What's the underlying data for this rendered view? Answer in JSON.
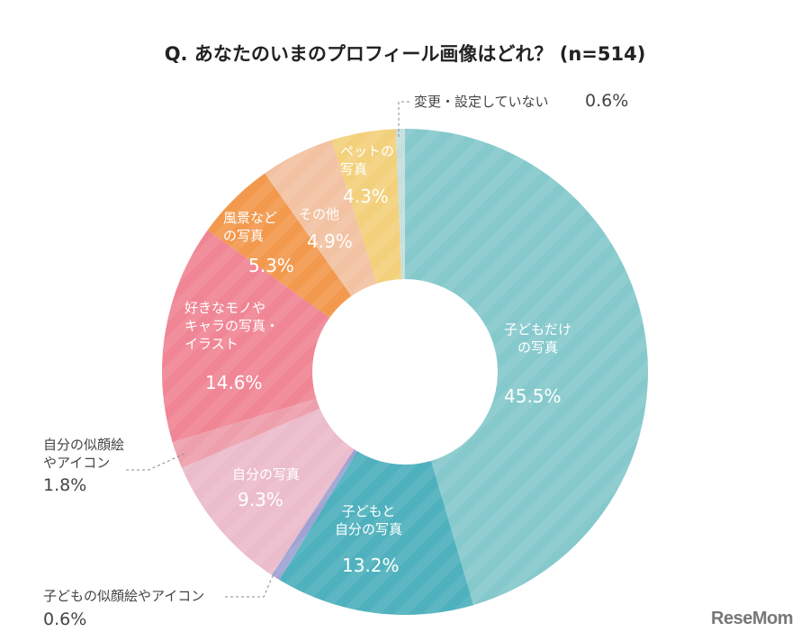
{
  "title": "Q. あなたのいまのプロフィール画像はどれ？ (n=514)",
  "logo": "ReseMom",
  "chart_data": {
    "type": "pie",
    "donut": true,
    "start": "12 o'clock, clockwise",
    "title": "Q. あなたのいまのプロフィール画像はどれ？ (n=514)",
    "slices": [
      {
        "label": "子どもだけ\nの写真",
        "value": 45.5,
        "value_label": "45.5%",
        "color": "#86c9cc"
      },
      {
        "label": "子どもと\n自分の写真",
        "value": 13.2,
        "value_label": "13.2%",
        "color": "#4fb1bd"
      },
      {
        "label": "子どもの似顔絵やアイコン",
        "value": 0.6,
        "value_label": "0.6%",
        "color": "#9ea3d3"
      },
      {
        "label": "自分の写真",
        "value": 9.3,
        "value_label": "9.3%",
        "color": "#ebbccb"
      },
      {
        "label": "自分の似顔絵\nやアイコン",
        "value": 1.8,
        "value_label": "1.8%",
        "color": "#eda0ac"
      },
      {
        "label": "好きなモノや\nキャラの写真・\nイラスト",
        "value": 14.6,
        "value_label": "14.6%",
        "color": "#f08695"
      },
      {
        "label": "風景など\nの写真",
        "value": 5.3,
        "value_label": "5.3%",
        "color": "#f2994e"
      },
      {
        "label": "その他",
        "value": 4.9,
        "value_label": "4.9%",
        "color": "#f2c2a2"
      },
      {
        "label": "ペットの\n写真",
        "value": 4.3,
        "value_label": "4.3%",
        "color": "#f3d07c"
      },
      {
        "label": "変更・設定していない",
        "value": 0.6,
        "value_label": "0.6%",
        "color": "#c5dfdc"
      }
    ]
  }
}
